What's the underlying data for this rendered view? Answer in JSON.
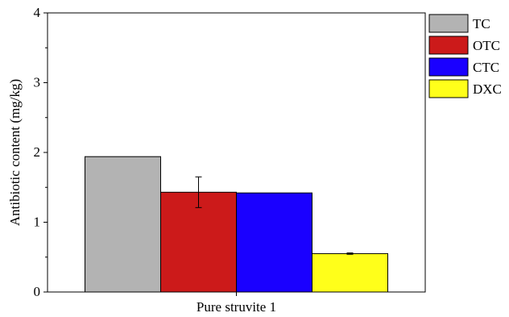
{
  "chart_data": {
    "type": "bar",
    "categories": [
      "Pure struvite 1"
    ],
    "ylabel": "Antibiotic content (mg/kg)",
    "xlabel": "",
    "ylim": [
      0,
      4
    ],
    "yticks": [
      "0",
      "1",
      "2",
      "3",
      "4"
    ],
    "grid": false,
    "legend_position": "right",
    "series": [
      {
        "name": "TC",
        "color": "#b3b3b3",
        "values": [
          1.94
        ],
        "error": [
          0
        ]
      },
      {
        "name": "OTC",
        "color": "#cc1a1a",
        "values": [
          1.43
        ],
        "error": [
          0.22
        ]
      },
      {
        "name": "CTC",
        "color": "#1a00ff",
        "values": [
          1.42
        ],
        "error": [
          0
        ]
      },
      {
        "name": "DXC",
        "color": "#ffff1a",
        "values": [
          0.55
        ],
        "error": [
          0.01
        ]
      }
    ]
  }
}
